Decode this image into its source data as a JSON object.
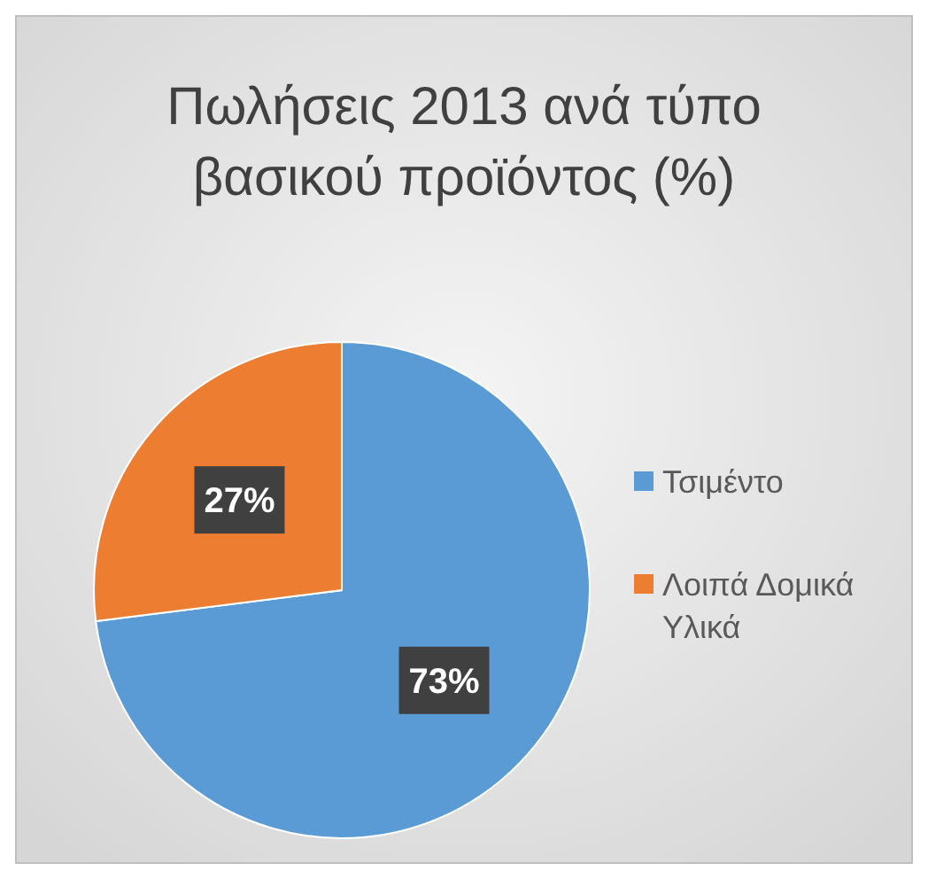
{
  "chart_data": {
    "type": "pie",
    "title": "Πωλήσεις 2013 ανά τύπο βασικού προϊόντος (%)",
    "categories": [
      "Τσιμέντο",
      "Λοιπά Δομικά Υλικά"
    ],
    "values": [
      73,
      27
    ],
    "colors": [
      "#5b9bd5",
      "#ed7d31"
    ],
    "value_labels": [
      "73%",
      "27%"
    ],
    "legend": "right"
  }
}
